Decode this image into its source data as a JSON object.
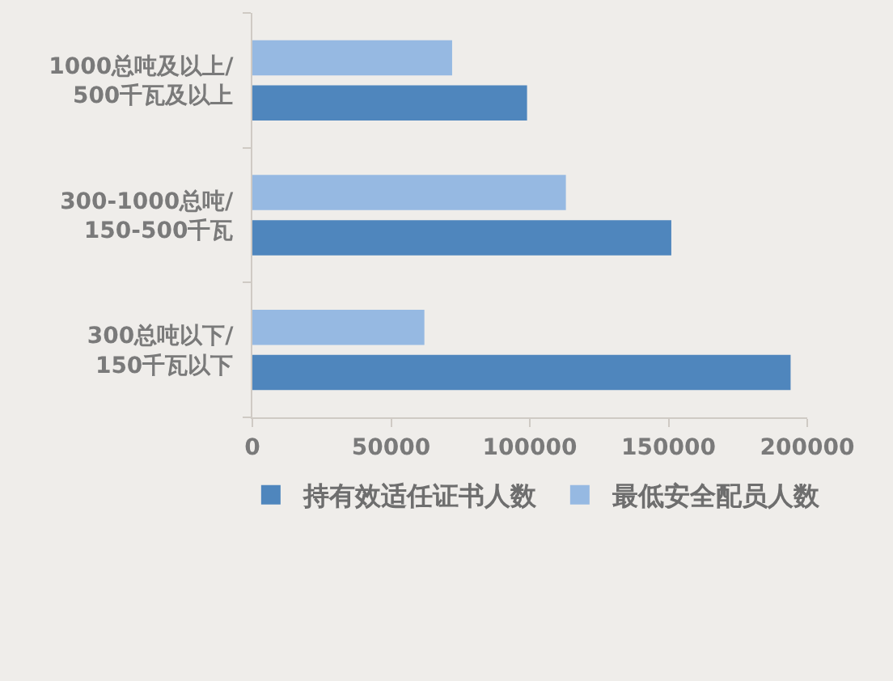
{
  "chart_data": {
    "type": "bar",
    "orientation": "horizontal",
    "categories": [
      "1000总吨及以上/\n500千瓦及以上",
      "300-1000总吨/\n150-500千瓦",
      "300总吨以下/\n150千瓦以下"
    ],
    "series": [
      {
        "name": "持有效适任证书人数",
        "color": "#4f86bd",
        "values": [
          99000,
          151000,
          194000
        ]
      },
      {
        "name": "最低安全配员人数",
        "color": "#96b9e2",
        "values": [
          72000,
          113000,
          62000
        ]
      }
    ],
    "xlim": [
      0,
      200000
    ],
    "xticks": [
      0,
      50000,
      100000,
      150000,
      200000
    ],
    "grid": false,
    "legend": "bottom"
  }
}
